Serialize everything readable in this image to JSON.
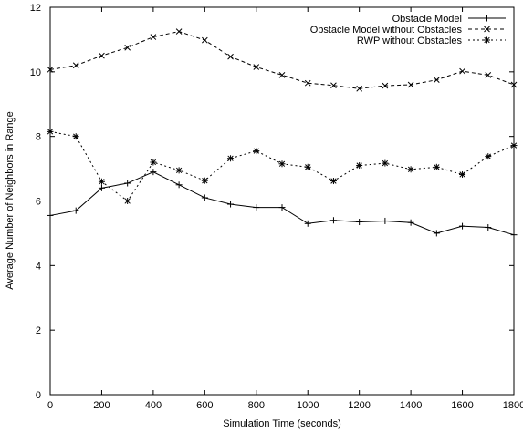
{
  "chart_data": {
    "type": "line",
    "title": "",
    "xlabel": "Simulation Time (seconds)",
    "ylabel": "Average Number of Neighbors in Range",
    "xlim": [
      0,
      1800
    ],
    "ylim": [
      0,
      12
    ],
    "xticks": [
      0,
      200,
      400,
      600,
      800,
      1000,
      1200,
      1400,
      1600,
      1800
    ],
    "yticks": [
      0,
      2,
      4,
      6,
      8,
      10,
      12
    ],
    "grid": false,
    "legend_position": "top-right",
    "x": [
      0,
      100,
      200,
      300,
      400,
      500,
      600,
      700,
      800,
      900,
      1000,
      1100,
      1200,
      1300,
      1400,
      1500,
      1600,
      1700,
      1800
    ],
    "series": [
      {
        "name": "Obstacle Model",
        "line_style": "solid",
        "marker": "plus",
        "values": [
          5.55,
          5.7,
          6.4,
          6.55,
          6.9,
          6.5,
          6.1,
          5.9,
          5.8,
          5.8,
          5.3,
          5.4,
          5.35,
          5.38,
          5.33,
          5.0,
          5.22,
          5.18,
          4.95
        ]
      },
      {
        "name": "Obstacle Model without Obstacles",
        "line_style": "dashed",
        "marker": "cross",
        "values": [
          10.07,
          10.2,
          10.5,
          10.75,
          11.08,
          11.25,
          10.98,
          10.47,
          10.15,
          9.9,
          9.65,
          9.58,
          9.48,
          9.57,
          9.6,
          9.75,
          10.02,
          9.9,
          9.6
        ]
      },
      {
        "name": "RWP without Obstacles",
        "line_style": "dotted",
        "marker": "star",
        "values": [
          8.15,
          8.0,
          6.6,
          6.0,
          7.2,
          6.95,
          6.63,
          7.32,
          7.55,
          7.15,
          7.05,
          6.62,
          7.1,
          7.17,
          6.98,
          7.05,
          6.82,
          7.38,
          7.72
        ]
      }
    ]
  }
}
